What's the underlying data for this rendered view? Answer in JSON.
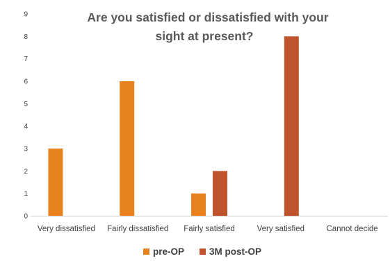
{
  "chart_data": {
    "type": "bar",
    "title_lines": [
      "Are you satisfied or dissatisfied with your",
      "sight at present?"
    ],
    "categories": [
      "Very dissatisfied",
      "Fairly dissatisfied",
      "Fairly satisfied",
      "Very satisfied",
      "Cannot decide"
    ],
    "series": [
      {
        "name": "pre-OP",
        "color": "#E8821E",
        "values": [
          3,
          6,
          1,
          0,
          0
        ]
      },
      {
        "name": "3M post-OP",
        "color": "#C0542C",
        "values": [
          0,
          0,
          2,
          8,
          0
        ]
      }
    ],
    "ylim": [
      0,
      9
    ],
    "yticks": [
      "0",
      "1",
      "2",
      "3",
      "4",
      "5",
      "6",
      "7",
      "8",
      "9"
    ],
    "grid": false,
    "legend_position": "bottom"
  }
}
